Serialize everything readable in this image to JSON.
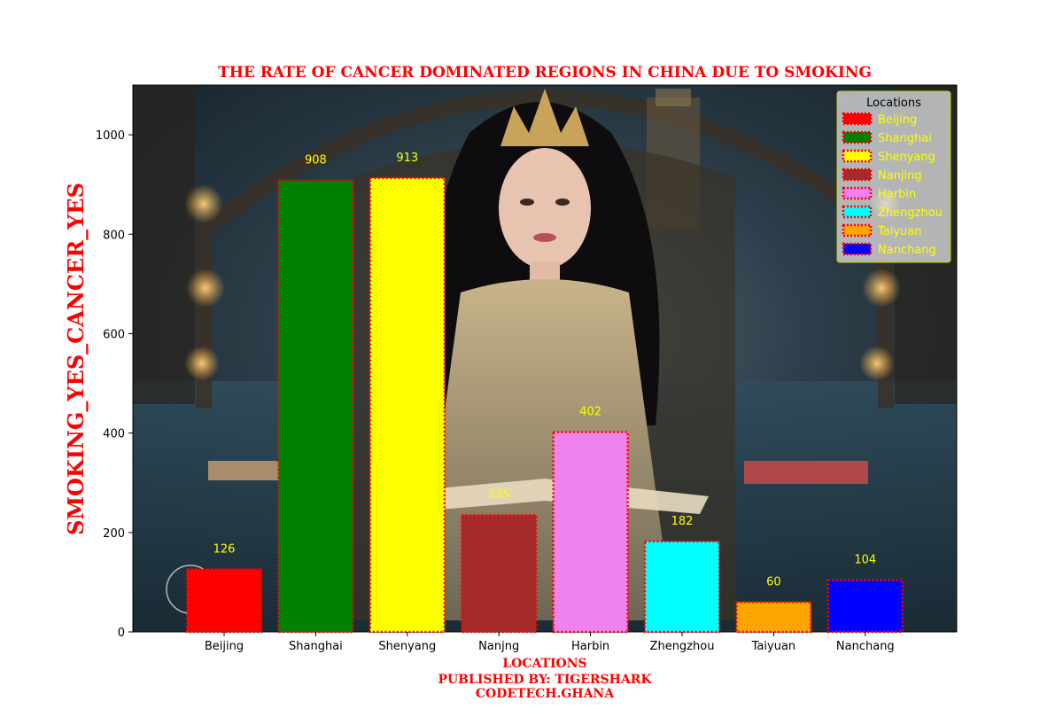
{
  "chart_data": {
    "type": "bar",
    "title": "THE RATE OF CANCER DOMINATED REGIONS IN CHINA DUE TO SMOKING",
    "xlabel_lines": [
      "LOCATIONS",
      "PUBLISHED BY: TIGERSHARK",
      "CODETECH.GHANA"
    ],
    "ylabel": "SMOKING_YES_CANCER_YES",
    "categories": [
      "Beijing",
      "Shanghai",
      "Shenyang",
      "Nanjng",
      "Harbin",
      "Zhengzhou",
      "Taiyuan",
      "Nanchang"
    ],
    "values": [
      126,
      908,
      913,
      235,
      402,
      182,
      60,
      104
    ],
    "data_labels": [
      "126",
      "908",
      "913",
      "235",
      "402",
      "182",
      "60",
      "104"
    ],
    "colors": [
      "#ff0000",
      "#008000",
      "#ffff00",
      "#a52a2a",
      "#ee82ee",
      "#00ffff",
      "#ffa500",
      "#0000ff"
    ],
    "edge_color": "#ff0000",
    "edge_style": "dotted",
    "ylim": [
      0,
      1100
    ],
    "yticks": [
      0,
      200,
      400,
      600,
      800,
      1000
    ],
    "ytick_labels": [
      "0",
      "200",
      "400",
      "600",
      "800",
      "1000"
    ],
    "grid": false,
    "legend": {
      "title": "Locations",
      "placement": "top-right",
      "entries": [
        "Beijing",
        "Shanghai",
        "Shenyang",
        "Nanjing",
        "Harbin",
        "Zhengzhou",
        "Taiyuan",
        "Nanchang"
      ],
      "text_color": "#ffff00"
    },
    "title_color": "#ff0000",
    "label_color": "#ff0000",
    "data_label_color": "#ffff00",
    "background": "photo of a woman with long dark hair and a crown seated on a throne in a fantasy library"
  }
}
